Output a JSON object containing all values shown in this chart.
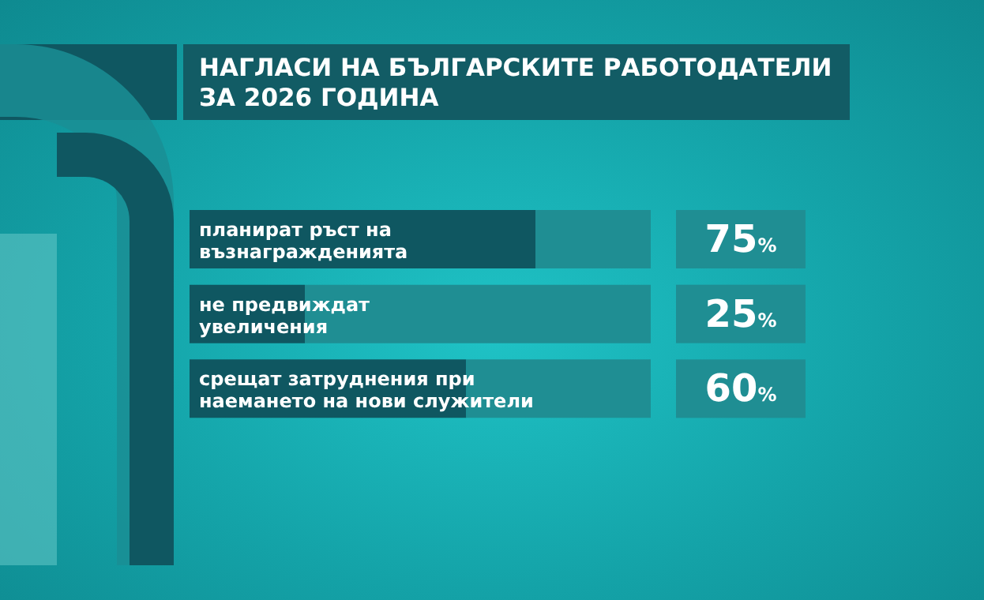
{
  "chart_data": {
    "type": "bar",
    "orientation": "horizontal",
    "stacked": true,
    "title": "НАГЛАСИ НА БЪЛГАРСКИТЕ РАБОТОДАТЕЛИ ЗА 2026 ГОДИНА",
    "categories": [
      "планират ръст на възнагражденията",
      "не предвиждат увеличения",
      "срещат затруднения при наемането на нови служители"
    ],
    "series": [
      {
        "color": "#0f5761",
        "values": [
          75,
          25,
          60
        ],
        "value_labels": [
          "75%",
          "25%",
          "60%"
        ]
      },
      {
        "color": "#1f8e93",
        "values": [
          25,
          75,
          40
        ]
      }
    ],
    "xlim": [
      0,
      100
    ]
  }
}
